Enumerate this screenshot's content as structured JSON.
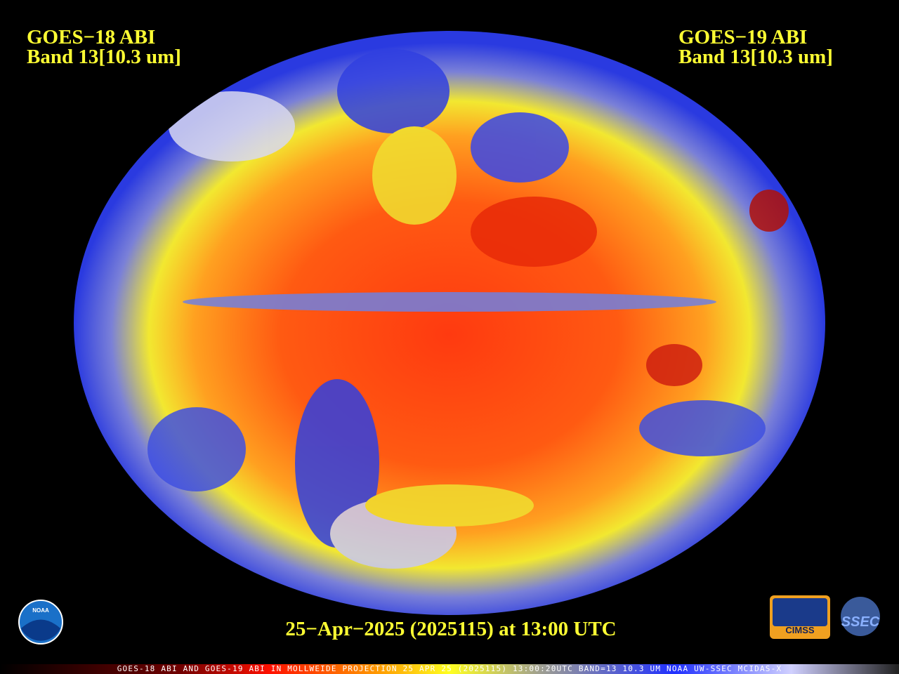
{
  "header": {
    "left": {
      "line1": "GOES−18 ABI",
      "line2": "Band 13[10.3 um]"
    },
    "right": {
      "line1": "GOES−19 ABI",
      "line2": "Band 13[10.3 um]"
    }
  },
  "timestamp": "25−Apr−2025 (2025115) at 13:00 UTC",
  "footer": "GOES-18 ABI AND GOES-19 ABI IN MOLLWEIDE PROJECTION 25 APR 25 (2025115) 13:00:20UTC BAND=13 10.3 UM NOAA UW-SSEC MCIDAS-X",
  "logos": {
    "noaa": "NOAA",
    "cimss": "CIMSS",
    "ssec": "SSEC"
  }
}
